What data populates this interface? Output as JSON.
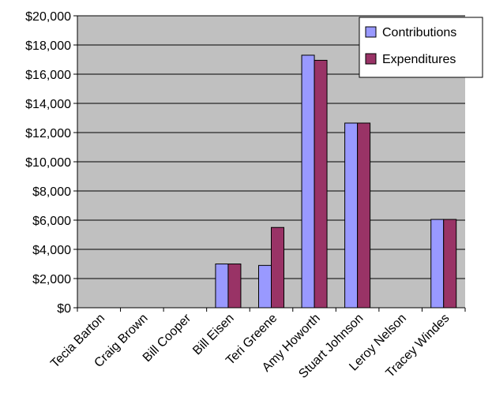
{
  "chart_data": {
    "type": "bar",
    "title": "",
    "xlabel": "",
    "ylabel": "",
    "categories": [
      "Tecia Barton",
      "Craig Brown",
      "Bill Cooper",
      "Bill Eisen",
      "Teri Greene",
      "Amy Howorth",
      "Stuart Johnson",
      "Leroy Nelson",
      "Tracey Windes"
    ],
    "series": [
      {
        "name": "Contributions",
        "color": "#9999ff",
        "values": [
          0,
          0,
          0,
          3000,
          2900,
          17300,
          12650,
          0,
          6050
        ]
      },
      {
        "name": "Expenditures",
        "color": "#993366",
        "values": [
          0,
          0,
          0,
          3000,
          5500,
          16950,
          12650,
          0,
          6050
        ]
      }
    ],
    "ylim": [
      0,
      20000
    ],
    "yticks": [
      0,
      2000,
      4000,
      6000,
      8000,
      10000,
      12000,
      14000,
      16000,
      18000,
      20000
    ],
    "ytick_labels": [
      "$0",
      "$2,000",
      "$4,000",
      "$6,000",
      "$8,000",
      "$10,000",
      "$12,000",
      "$14,000",
      "$16,000",
      "$18,000",
      "$20,000"
    ],
    "grid": true,
    "plot_background": "#c0c0c0",
    "legend_position": "top-right"
  }
}
